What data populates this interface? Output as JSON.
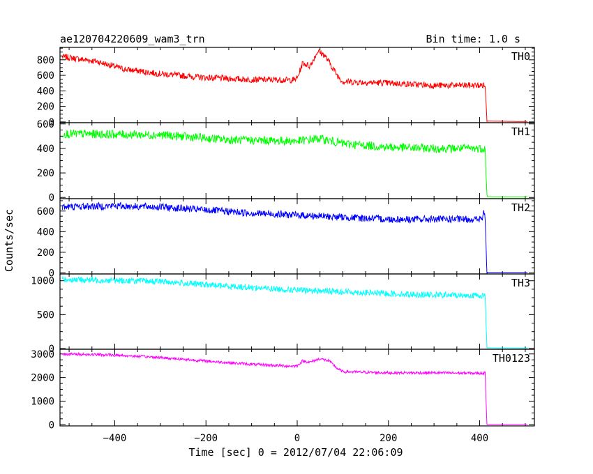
{
  "header": {
    "title": "ae120704220609_wam3_trn",
    "bin_time": "Bin time: 1.0 s"
  },
  "axes": {
    "ylabel": "Counts/sec",
    "xlabel": "Time [sec] 0 = 2012/07/04 22:06:09"
  },
  "chart_data": {
    "type": "line",
    "x": {
      "range": [
        -520,
        520
      ],
      "ticks": [
        -400,
        -200,
        0,
        200,
        400
      ]
    },
    "series": [
      {
        "name": "TH0",
        "color": "#ff0000",
        "ylim": [
          -10,
          960
        ],
        "yticks": [
          0,
          200,
          400,
          600,
          800
        ],
        "noise": 40,
        "profile": [
          [
            -515,
            840
          ],
          [
            -440,
            780
          ],
          [
            -380,
            680
          ],
          [
            -300,
            620
          ],
          [
            -200,
            570
          ],
          [
            -100,
            545
          ],
          [
            -10,
            540
          ],
          [
            0,
            560
          ],
          [
            12,
            760
          ],
          [
            28,
            720
          ],
          [
            45,
            910
          ],
          [
            60,
            860
          ],
          [
            72,
            750
          ],
          [
            88,
            600
          ],
          [
            100,
            520
          ],
          [
            200,
            500
          ],
          [
            300,
            470
          ],
          [
            400,
            470
          ],
          [
            412,
            470
          ],
          [
            416,
            10
          ],
          [
            505,
            5
          ]
        ]
      },
      {
        "name": "TH1",
        "color": "#00ff00",
        "ylim": [
          -10,
          610
        ],
        "yticks": [
          0,
          200,
          400,
          600
        ],
        "noise": 35,
        "profile": [
          [
            -515,
            520
          ],
          [
            -300,
            510
          ],
          [
            -150,
            470
          ],
          [
            0,
            460
          ],
          [
            50,
            480
          ],
          [
            100,
            440
          ],
          [
            200,
            410
          ],
          [
            300,
            400
          ],
          [
            412,
            400
          ],
          [
            416,
            5
          ],
          [
            505,
            5
          ]
        ]
      },
      {
        "name": "TH2",
        "color": "#0000ff",
        "ylim": [
          -10,
          720
        ],
        "yticks": [
          0,
          200,
          400,
          600
        ],
        "noise": 35,
        "profile": [
          [
            -515,
            640
          ],
          [
            -400,
            650
          ],
          [
            -300,
            640
          ],
          [
            -200,
            610
          ],
          [
            -100,
            580
          ],
          [
            0,
            560
          ],
          [
            100,
            540
          ],
          [
            200,
            520
          ],
          [
            300,
            520
          ],
          [
            405,
            520
          ],
          [
            410,
            590
          ],
          [
            412,
            530
          ],
          [
            416,
            5
          ],
          [
            505,
            5
          ]
        ]
      },
      {
        "name": "TH3",
        "color": "#00ffff",
        "ylim": [
          -10,
          1100
        ],
        "yticks": [
          0,
          500,
          1000
        ],
        "noise": 45,
        "profile": [
          [
            -515,
            1020
          ],
          [
            -300,
            990
          ],
          [
            -200,
            940
          ],
          [
            -100,
            900
          ],
          [
            0,
            860
          ],
          [
            100,
            840
          ],
          [
            200,
            810
          ],
          [
            300,
            790
          ],
          [
            412,
            780
          ],
          [
            416,
            10
          ],
          [
            505,
            5
          ]
        ]
      },
      {
        "name": "TH0123",
        "color": "#ff00ff",
        "ylim": [
          -50,
          3200
        ],
        "yticks": [
          0,
          1000,
          2000,
          3000
        ],
        "noise": 60,
        "profile": [
          [
            -515,
            3000
          ],
          [
            -400,
            2950
          ],
          [
            -300,
            2850
          ],
          [
            -200,
            2700
          ],
          [
            -100,
            2560
          ],
          [
            -10,
            2480
          ],
          [
            0,
            2500
          ],
          [
            12,
            2700
          ],
          [
            28,
            2650
          ],
          [
            50,
            2800
          ],
          [
            70,
            2700
          ],
          [
            90,
            2350
          ],
          [
            100,
            2250
          ],
          [
            200,
            2200
          ],
          [
            300,
            2200
          ],
          [
            412,
            2180
          ],
          [
            416,
            10
          ],
          [
            505,
            5
          ]
        ]
      }
    ]
  }
}
